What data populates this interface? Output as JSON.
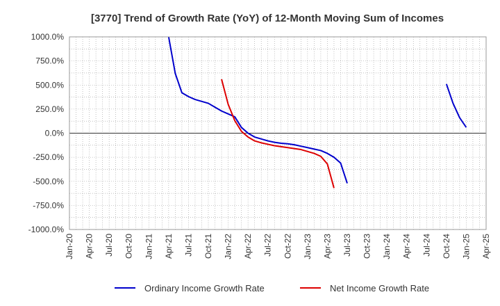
{
  "chart_data": {
    "type": "line",
    "title": "[3770]  Trend of Growth Rate (YoY) of 12-Month Moving Sum of Incomes",
    "xlabel": "",
    "ylabel": "",
    "x_ticks": [
      "Jan-20",
      "Apr-20",
      "Jul-20",
      "Oct-20",
      "Jan-21",
      "Apr-21",
      "Jul-21",
      "Oct-21",
      "Jan-22",
      "Apr-22",
      "Jul-22",
      "Oct-22",
      "Jan-23",
      "Apr-23",
      "Jul-23",
      "Oct-23",
      "Jan-24",
      "Apr-24",
      "Jul-24",
      "Oct-24",
      "Jan-25",
      "Apr-25"
    ],
    "y_ticks": [
      "1000.0%",
      "750.0%",
      "500.0%",
      "250.0%",
      "0.0%",
      "-250.0%",
      "-500.0%",
      "-750.0%",
      "-1000.0%"
    ],
    "ylim": [
      -1000,
      1000
    ],
    "grid": true,
    "legend_position": "bottom",
    "colors": {
      "ordinary": "#0000cc",
      "net": "#dd0000"
    },
    "series": [
      {
        "name": "Ordinary Income Growth Rate",
        "color": "#0000cc",
        "points": [
          [
            "2021-04",
            1000
          ],
          [
            "2021-05",
            620
          ],
          [
            "2021-06",
            420
          ],
          [
            "2021-07",
            380
          ],
          [
            "2021-08",
            350
          ],
          [
            "2021-09",
            330
          ],
          [
            "2021-10",
            310
          ],
          [
            "2021-11",
            270
          ],
          [
            "2021-12",
            230
          ],
          [
            "2022-01",
            200
          ],
          [
            "2022-02",
            170
          ],
          [
            "2022-03",
            60
          ],
          [
            "2022-04",
            0
          ],
          [
            "2022-05",
            -40
          ],
          [
            "2022-06",
            -60
          ],
          [
            "2022-07",
            -80
          ],
          [
            "2022-08",
            -95
          ],
          [
            "2022-09",
            -105
          ],
          [
            "2022-10",
            -110
          ],
          [
            "2022-11",
            -120
          ],
          [
            "2022-12",
            -135
          ],
          [
            "2023-01",
            -150
          ],
          [
            "2023-02",
            -165
          ],
          [
            "2023-03",
            -180
          ],
          [
            "2023-04",
            -210
          ],
          [
            "2023-05",
            -250
          ],
          [
            "2023-06",
            -310
          ],
          [
            "2023-07",
            -520
          ]
        ]
      },
      {
        "name": "Net Income Growth Rate",
        "color": "#dd0000",
        "points": [
          [
            "2021-12",
            560
          ],
          [
            "2022-01",
            300
          ],
          [
            "2022-02",
            130
          ],
          [
            "2022-03",
            20
          ],
          [
            "2022-04",
            -40
          ],
          [
            "2022-05",
            -80
          ],
          [
            "2022-06",
            -100
          ],
          [
            "2022-07",
            -115
          ],
          [
            "2022-08",
            -130
          ],
          [
            "2022-09",
            -140
          ],
          [
            "2022-10",
            -150
          ],
          [
            "2022-11",
            -160
          ],
          [
            "2022-12",
            -170
          ],
          [
            "2023-01",
            -190
          ],
          [
            "2023-02",
            -210
          ],
          [
            "2023-03",
            -240
          ],
          [
            "2023-04",
            -320
          ],
          [
            "2023-05",
            -570
          ]
        ]
      },
      {
        "name": "Ordinary Income Growth Rate",
        "color": "#0000cc",
        "legend": false,
        "points": [
          [
            "2024-10",
            510
          ],
          [
            "2024-11",
            310
          ],
          [
            "2024-12",
            160
          ],
          [
            "2025-01",
            60
          ]
        ]
      }
    ]
  }
}
